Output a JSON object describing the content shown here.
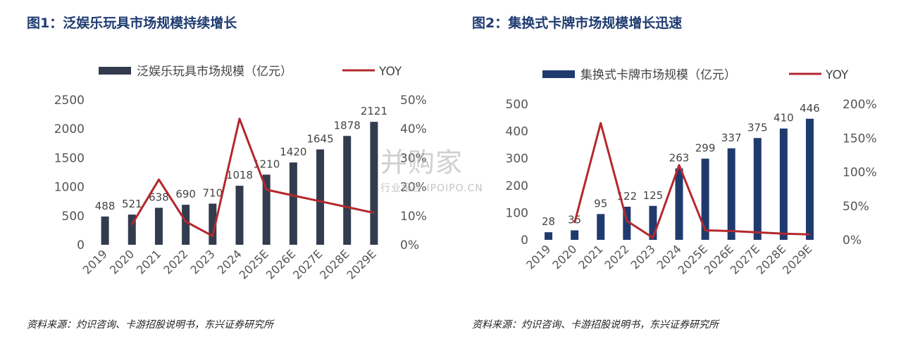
{
  "watermark": {
    "main": "并购家",
    "sub": "行业报告 IPOIPO.CN"
  },
  "chart_data": [
    {
      "type": "bar",
      "title": "图1：泛娱乐玩具市场规模持续增长",
      "source": "资料来源：灼识咨询、卡游招股说明书，东兴证券研究所",
      "categories": [
        "2019",
        "2020",
        "2021",
        "2022",
        "2023",
        "2024",
        "2025E",
        "2026E",
        "2027E",
        "2028E",
        "2029E"
      ],
      "series": [
        {
          "name": "泛娱乐玩具市场规模（亿元）",
          "type": "bar",
          "axis": "left",
          "color": "#323c4e",
          "values": [
            488,
            521,
            638,
            690,
            710,
            1018,
            1210,
            1420,
            1645,
            1878,
            2121
          ]
        },
        {
          "name": "YOY",
          "type": "line",
          "axis": "right",
          "color": "#b3282d",
          "values": [
            null,
            7,
            22.5,
            8,
            3,
            43.5,
            19,
            17,
            15,
            13,
            11
          ]
        }
      ],
      "y_left": {
        "min": 0,
        "max": 2500,
        "ticks": [
          "0",
          "500",
          "1000",
          "1500",
          "2000",
          "2500"
        ]
      },
      "y_right": {
        "min": 0,
        "max": 50,
        "ticks": [
          "0%",
          "10%",
          "20%",
          "30%",
          "40%",
          "50%"
        ]
      },
      "data_labels": [
        "488",
        "521",
        "638",
        "690",
        "710",
        "1018",
        "1210",
        "1420",
        "1645",
        "1878",
        "2121"
      ],
      "legend": "top"
    },
    {
      "type": "bar",
      "title": "图2：集换式卡牌市场规模增长迅速",
      "source": "资料来源：灼识咨询、卡游招股说明书，东兴证券研究所",
      "categories": [
        "2019",
        "2020",
        "2021",
        "2022",
        "2023",
        "2024",
        "2025E",
        "2026E",
        "2027E",
        "2028E",
        "2029E"
      ],
      "series": [
        {
          "name": "集换式卡牌市场规模（亿元）",
          "type": "bar",
          "axis": "left",
          "color": "#1f3a6e",
          "values": [
            28,
            35,
            95,
            122,
            125,
            263,
            299,
            337,
            375,
            410,
            446
          ]
        },
        {
          "name": "YOY",
          "type": "line",
          "axis": "right",
          "color": "#b3282d",
          "values": [
            null,
            25,
            172,
            28,
            3,
            110,
            14,
            13,
            11,
            9,
            8
          ]
        }
      ],
      "y_left": {
        "min": 0,
        "max": 500,
        "ticks": [
          "0",
          "100",
          "200",
          "300",
          "400",
          "500"
        ]
      },
      "y_right": {
        "min": 0,
        "max": 200,
        "ticks": [
          "0%",
          "50%",
          "100%",
          "150%",
          "200%"
        ]
      },
      "data_labels": [
        "28",
        "35",
        "95",
        "122",
        "125",
        "263",
        "299",
        "337",
        "375",
        "410",
        "446"
      ],
      "legend": "top"
    }
  ]
}
